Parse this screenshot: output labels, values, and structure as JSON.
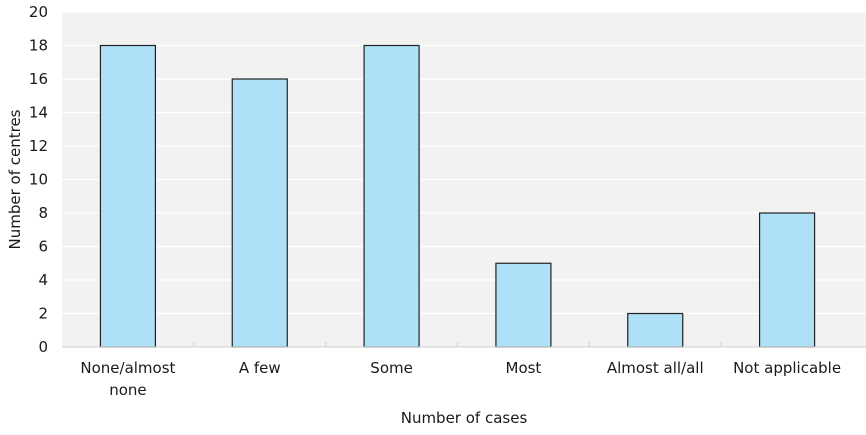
{
  "chart_data": {
    "type": "bar",
    "categories": [
      "None/almost none",
      "A few",
      "Some",
      "Most",
      "Almost all/all",
      "Not applicable"
    ],
    "category_lines": [
      [
        "None/almost",
        "none"
      ],
      [
        "A few"
      ],
      [
        "Some"
      ],
      [
        "Most"
      ],
      [
        "Almost all/all"
      ],
      [
        "Not applicable"
      ]
    ],
    "values": [
      18,
      16,
      18,
      5,
      2,
      8
    ],
    "xlabel": "Number of cases",
    "ylabel": "Number of centres",
    "ylim": [
      0,
      20
    ],
    "yticks": [
      0,
      2,
      4,
      6,
      8,
      10,
      12,
      14,
      16,
      18,
      20
    ],
    "grid": "horizontal",
    "legend": "none",
    "colors": {
      "bar_fill": "#aee0f8",
      "bar_stroke": "#222222",
      "plot_background": "#f2f2f2",
      "gridline": "#ffffff",
      "axis": "#cfcfcf"
    }
  }
}
